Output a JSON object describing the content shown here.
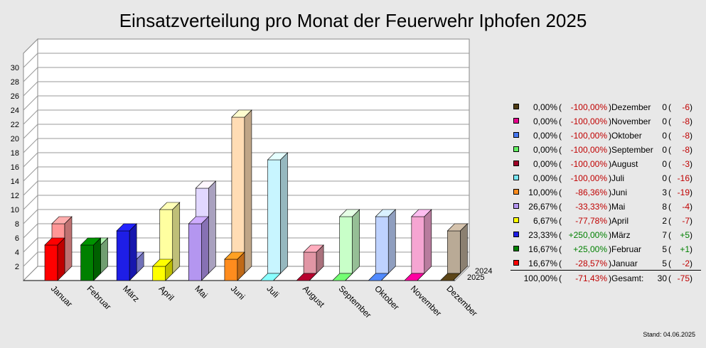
{
  "chart_data": {
    "type": "bar",
    "title": "Einsatzverteilung pro Monat der Feuerwehr Iphofen 2025",
    "categories": [
      "Januar",
      "Februar",
      "März",
      "April",
      "Mai",
      "Juni",
      "Juli",
      "August",
      "September",
      "Oktober",
      "November",
      "Dezember"
    ],
    "series": [
      {
        "name": "2024",
        "values": [
          7,
          4,
          2,
          9,
          12,
          22,
          16,
          3,
          8,
          8,
          8,
          6
        ]
      },
      {
        "name": "2025",
        "values": [
          5,
          5,
          7,
          2,
          8,
          3,
          0,
          0,
          0,
          0,
          0,
          0
        ]
      }
    ],
    "ylim": [
      0,
      30
    ],
    "yticks": [
      2,
      4,
      6,
      8,
      10,
      12,
      14,
      16,
      18,
      20,
      22,
      24,
      26,
      28,
      30
    ],
    "colors_2025": [
      "#ff0000",
      "#008000",
      "#1e1ee6",
      "#ffff00",
      "#b496f0",
      "#ff8c1e",
      "#78e6f5",
      "#a00028",
      "#64f064",
      "#4678f0",
      "#e6008c",
      "#503c14"
    ],
    "colors_2024": [
      "#ff9696",
      "#96d296",
      "#9696f5",
      "#ffffa0",
      "#e1d7ff",
      "#ffdcb4",
      "#c8f5ff",
      "#e196a5",
      "#c8ffc8",
      "#bed2ff",
      "#f5a5d2",
      "#b9aa96"
    ]
  },
  "legend": {
    "rows": [
      {
        "swatch": "#503c14",
        "pct": "0,00%",
        "change": "-100,00%",
        "month": "Dezember",
        "count": "0",
        "diff": "-6"
      },
      {
        "swatch": "#e6008c",
        "pct": "0,00%",
        "change": "-100,00%",
        "month": "November",
        "count": "0",
        "diff": "-8"
      },
      {
        "swatch": "#4678f0",
        "pct": "0,00%",
        "change": "-100,00%",
        "month": "Oktober",
        "count": "0",
        "diff": "-8"
      },
      {
        "swatch": "#64f064",
        "pct": "0,00%",
        "change": "-100,00%",
        "month": "September",
        "count": "0",
        "diff": "-8"
      },
      {
        "swatch": "#a00028",
        "pct": "0,00%",
        "change": "-100,00%",
        "month": "August",
        "count": "0",
        "diff": "-3"
      },
      {
        "swatch": "#78e6f5",
        "pct": "0,00%",
        "change": "-100,00%",
        "month": "Juli",
        "count": "0",
        "diff": "-16"
      },
      {
        "swatch": "#ff8c1e",
        "pct": "10,00%",
        "change": "-86,36%",
        "month": "Juni",
        "count": "3",
        "diff": "-19"
      },
      {
        "swatch": "#b496f0",
        "pct": "26,67%",
        "change": "-33,33%",
        "month": "Mai",
        "count": "8",
        "diff": "-4"
      },
      {
        "swatch": "#ffff00",
        "pct": "6,67%",
        "change": "-77,78%",
        "month": "April",
        "count": "2",
        "diff": "-7"
      },
      {
        "swatch": "#1e1ee6",
        "pct": "23,33%",
        "change": "+250,00%",
        "month": "März",
        "count": "7",
        "diff": "+5"
      },
      {
        "swatch": "#008000",
        "pct": "16,67%",
        "change": "+25,00%",
        "month": "Februar",
        "count": "5",
        "diff": "+1"
      },
      {
        "swatch": "#ff0000",
        "pct": "16,67%",
        "change": "-28,57%",
        "month": "Januar",
        "count": "5",
        "diff": "-2"
      }
    ],
    "total": {
      "pct": "100,00%",
      "change": "-71,43%",
      "label": "Gesamt:",
      "count": "30",
      "diff": "-75"
    },
    "open_paren": "(",
    "close_paren": ")"
  },
  "footer": {
    "stand": "Stand: 04.06.2025"
  }
}
